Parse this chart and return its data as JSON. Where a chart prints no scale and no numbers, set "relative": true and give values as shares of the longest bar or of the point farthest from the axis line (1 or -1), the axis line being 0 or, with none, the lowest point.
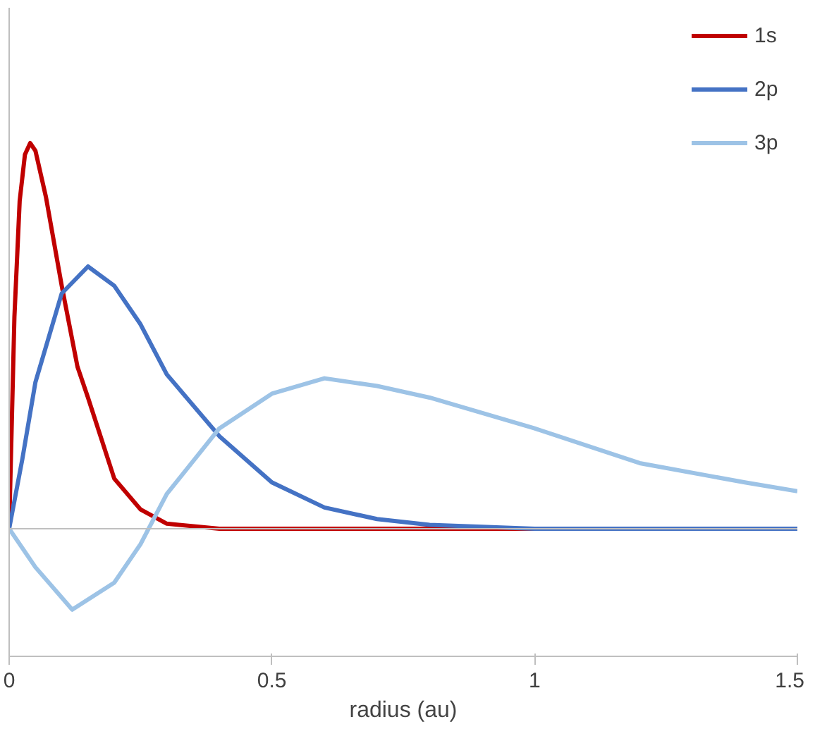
{
  "chart_data": {
    "type": "line",
    "relative": true,
    "xlabel": "radius (au)",
    "xlim": [
      0,
      1.5
    ],
    "xticks": [
      0,
      0.5,
      1,
      1.5
    ],
    "grid": false,
    "legend": "top right",
    "line_style": "solid",
    "marker": "none",
    "series": [
      {
        "name": "1s",
        "color": "#c00000",
        "x": [
          0,
          0.01,
          0.02,
          0.03,
          0.04,
          0.05,
          0.07,
          0.1,
          0.13,
          0.15,
          0.2,
          0.25,
          0.3,
          0.4,
          0.6,
          1.0,
          1.5
        ],
        "values": [
          0,
          0.55,
          0.85,
          0.97,
          1.0,
          0.98,
          0.86,
          0.63,
          0.42,
          0.34,
          0.13,
          0.05,
          0.013,
          0,
          0,
          0,
          0
        ]
      },
      {
        "name": "2p",
        "color": "#4472c4",
        "x": [
          0,
          0.025,
          0.05,
          0.1,
          0.15,
          0.2,
          0.25,
          0.3,
          0.4,
          0.5,
          0.6,
          0.7,
          0.8,
          1.0,
          1.5
        ],
        "values": [
          0,
          0.18,
          0.38,
          0.61,
          0.68,
          0.63,
          0.53,
          0.4,
          0.24,
          0.12,
          0.055,
          0.025,
          0.01,
          0,
          0
        ]
      },
      {
        "name": "3p",
        "color": "#9dc3e6",
        "x": [
          0,
          0.05,
          0.12,
          0.2,
          0.25,
          0.3,
          0.4,
          0.5,
          0.6,
          0.7,
          0.8,
          1.0,
          1.2,
          1.4,
          1.5
        ],
        "values": [
          0,
          -0.1,
          -0.21,
          -0.14,
          -0.04,
          0.09,
          0.26,
          0.35,
          0.39,
          0.37,
          0.34,
          0.26,
          0.17,
          0.12,
          0.097
        ]
      }
    ]
  }
}
